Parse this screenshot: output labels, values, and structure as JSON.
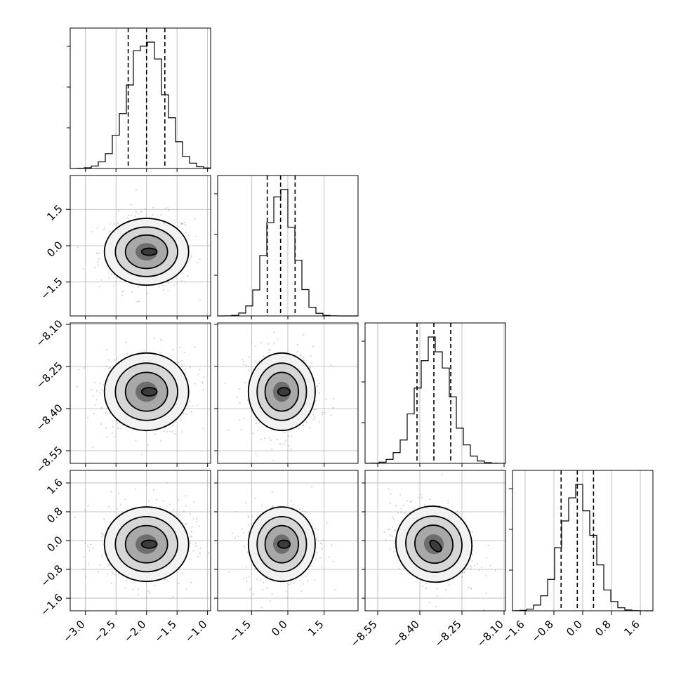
{
  "chart_data": {
    "type": "corner",
    "parameters": 4,
    "grid": true,
    "axes": [
      {
        "index": 0,
        "range": [
          -3.25,
          -0.95
        ],
        "ticks": [
          -3.0,
          -2.5,
          -2.0,
          -1.5,
          -1.0
        ],
        "tick_labels": [
          "−3.0",
          "−2.5",
          "−2.0",
          "−1.5",
          "−1.0"
        ]
      },
      {
        "index": 1,
        "range": [
          -2.9,
          2.9
        ],
        "ticks": [
          -1.5,
          0.0,
          1.5
        ],
        "tick_labels": [
          "−1.5",
          "0.0",
          "1.5"
        ]
      },
      {
        "index": 2,
        "range": [
          -8.595,
          -8.095
        ],
        "ticks": [
          -8.55,
          -8.4,
          -8.25,
          -8.1
        ],
        "tick_labels": [
          "−8.55",
          "−8.40",
          "−8.25",
          "−8.10"
        ]
      },
      {
        "index": 3,
        "range": [
          -1.95,
          1.95
        ],
        "ticks": [
          -1.6,
          -0.8,
          0.0,
          0.8,
          1.6
        ],
        "tick_labels": [
          "−1.6",
          "−0.8",
          "0.0",
          "0.8",
          "1.6"
        ]
      }
    ],
    "marginals": [
      {
        "param": 0,
        "median": -2.0,
        "q16": -2.3,
        "q84": -1.7,
        "peak_value": -2.0
      },
      {
        "param": 1,
        "median": -0.3,
        "q16": -0.85,
        "q84": 0.3,
        "peak_value": -0.2
      },
      {
        "param": 2,
        "median": -8.35,
        "q16": -8.41,
        "q84": -8.29,
        "peak_value": -8.35
      },
      {
        "param": 3,
        "median": -0.15,
        "q16": -0.6,
        "q84": 0.3,
        "peak_value": -0.1
      }
    ],
    "joint": [
      {
        "x_param": 0,
        "y_param": 1,
        "center": [
          -2.0,
          -0.25
        ],
        "spread": [
          0.3,
          0.6
        ],
        "rho": 0.0
      },
      {
        "x_param": 0,
        "y_param": 2,
        "center": [
          -2.0,
          -8.34
        ],
        "spread": [
          0.3,
          0.06
        ],
        "rho": 0.0
      },
      {
        "x_param": 1,
        "y_param": 2,
        "center": [
          -0.25,
          -8.34
        ],
        "spread": [
          0.6,
          0.06
        ],
        "rho": 0.0
      },
      {
        "x_param": 0,
        "y_param": 3,
        "center": [
          -2.0,
          -0.1
        ],
        "spread": [
          0.3,
          0.45
        ],
        "rho": 0.0
      },
      {
        "x_param": 1,
        "y_param": 3,
        "center": [
          -0.25,
          -0.1
        ],
        "spread": [
          0.6,
          0.45
        ],
        "rho": 0.0
      },
      {
        "x_param": 2,
        "y_param": 3,
        "center": [
          -8.35,
          -0.1
        ],
        "spread": [
          0.06,
          0.45
        ],
        "rho": -0.3
      }
    ]
  }
}
